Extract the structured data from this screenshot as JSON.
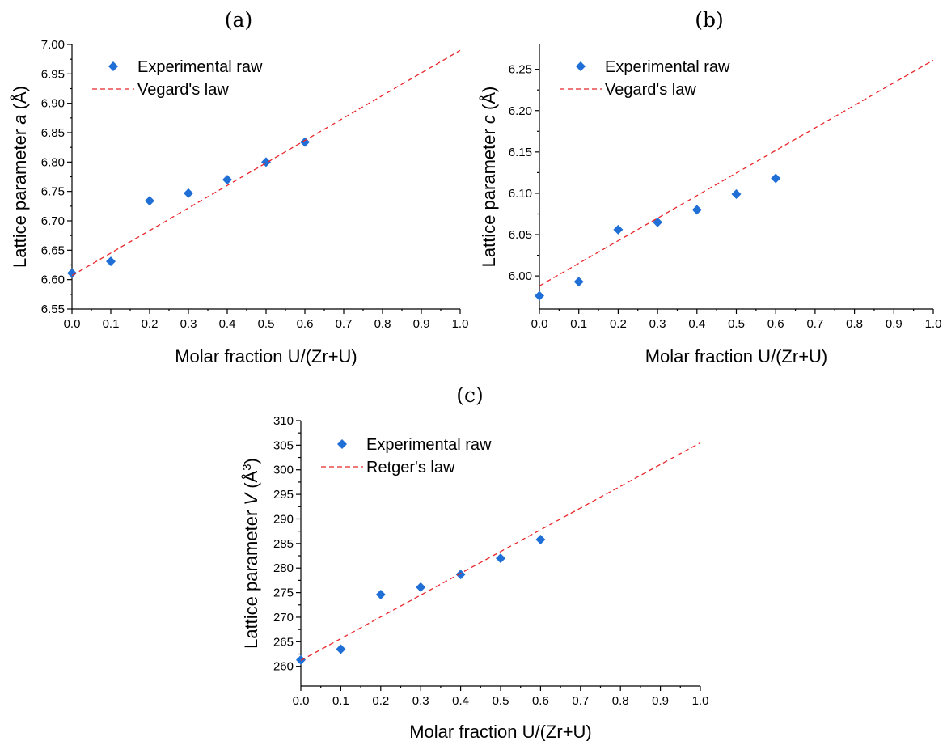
{
  "chart_data": [
    {
      "type": "scatter",
      "panel_label": "(a)",
      "xlabel": "Molar fraction U/(Zr+U)",
      "ylabel_prefix": "Lattice parameter ",
      "ylabel_var": "a",
      "ylabel_unit": " (Å)",
      "xlim": [
        0.0,
        1.0
      ],
      "ylim": [
        6.55,
        7.0
      ],
      "xticks": [
        "0.0",
        "0.1",
        "0.2",
        "0.3",
        "0.4",
        "0.5",
        "0.6",
        "0.7",
        "0.8",
        "0.9",
        "1.0"
      ],
      "yticks": [
        "6.55",
        "6.60",
        "6.65",
        "6.70",
        "6.75",
        "6.80",
        "6.85",
        "6.90",
        "6.95",
        "7.00"
      ],
      "grid": false,
      "legend_position": "top-left",
      "series": [
        {
          "name": "Experimental raw",
          "kind": "marker",
          "color": "#1f6fd6",
          "x": [
            0.0,
            0.1,
            0.2,
            0.3,
            0.4,
            0.5,
            0.6
          ],
          "y": [
            6.611,
            6.631,
            6.734,
            6.747,
            6.77,
            6.8,
            6.834
          ]
        },
        {
          "name": "Vegard's law",
          "kind": "dashed-line",
          "color": "#e8262a",
          "x": [
            0.0,
            1.0
          ],
          "y": [
            6.607,
            6.99
          ]
        }
      ]
    },
    {
      "type": "scatter",
      "panel_label": "(b)",
      "xlabel": "Molar fraction U/(Zr+U)",
      "ylabel_prefix": "Lattice parameter ",
      "ylabel_var": "c",
      "ylabel_unit": " (Å)",
      "xlim": [
        0.0,
        1.0
      ],
      "ylim": [
        5.96,
        6.28
      ],
      "xticks": [
        "0.0",
        "0.1",
        "0.2",
        "0.3",
        "0.4",
        "0.5",
        "0.6",
        "0.7",
        "0.8",
        "0.9",
        "1.0"
      ],
      "yticks": [
        "6.00",
        "6.05",
        "6.10",
        "6.15",
        "6.20",
        "6.25"
      ],
      "grid": false,
      "legend_position": "top-left",
      "series": [
        {
          "name": "Experimental raw",
          "kind": "marker",
          "color": "#1f6fd6",
          "x": [
            0.0,
            0.1,
            0.2,
            0.3,
            0.4,
            0.5,
            0.6
          ],
          "y": [
            5.976,
            5.993,
            6.056,
            6.065,
            6.08,
            6.099,
            6.118
          ]
        },
        {
          "name": "Vegard's law",
          "kind": "dashed-line",
          "color": "#e8262a",
          "x": [
            0.0,
            1.0
          ],
          "y": [
            5.988,
            6.261
          ]
        }
      ]
    },
    {
      "type": "scatter",
      "panel_label": "(c)",
      "xlabel": "Molar fraction U/(Zr+U)",
      "ylabel_prefix": "Lattice parameter ",
      "ylabel_var": "V",
      "ylabel_unit": " (Å",
      "ylabel_sup": "3",
      "ylabel_close": ")",
      "xlim": [
        0.0,
        1.0
      ],
      "ylim": [
        256,
        310
      ],
      "xticks": [
        "0.0",
        "0.1",
        "0.2",
        "0.3",
        "0.4",
        "0.5",
        "0.6",
        "0.7",
        "0.8",
        "0.9",
        "1.0"
      ],
      "yticks": [
        "260",
        "265",
        "270",
        "275",
        "280",
        "285",
        "290",
        "295",
        "300",
        "305",
        "310"
      ],
      "grid": false,
      "legend_position": "top-left",
      "series": [
        {
          "name": "Experimental raw",
          "kind": "marker",
          "color": "#1f6fd6",
          "x": [
            0.0,
            0.1,
            0.2,
            0.3,
            0.4,
            0.5,
            0.6
          ],
          "y": [
            261.3,
            263.5,
            274.6,
            276.1,
            278.7,
            282.0,
            285.8
          ]
        },
        {
          "name": "Retger's law",
          "kind": "dashed-line",
          "color": "#e8262a",
          "x": [
            0.0,
            1.0
          ],
          "y": [
            261.2,
            305.5
          ]
        }
      ]
    }
  ]
}
